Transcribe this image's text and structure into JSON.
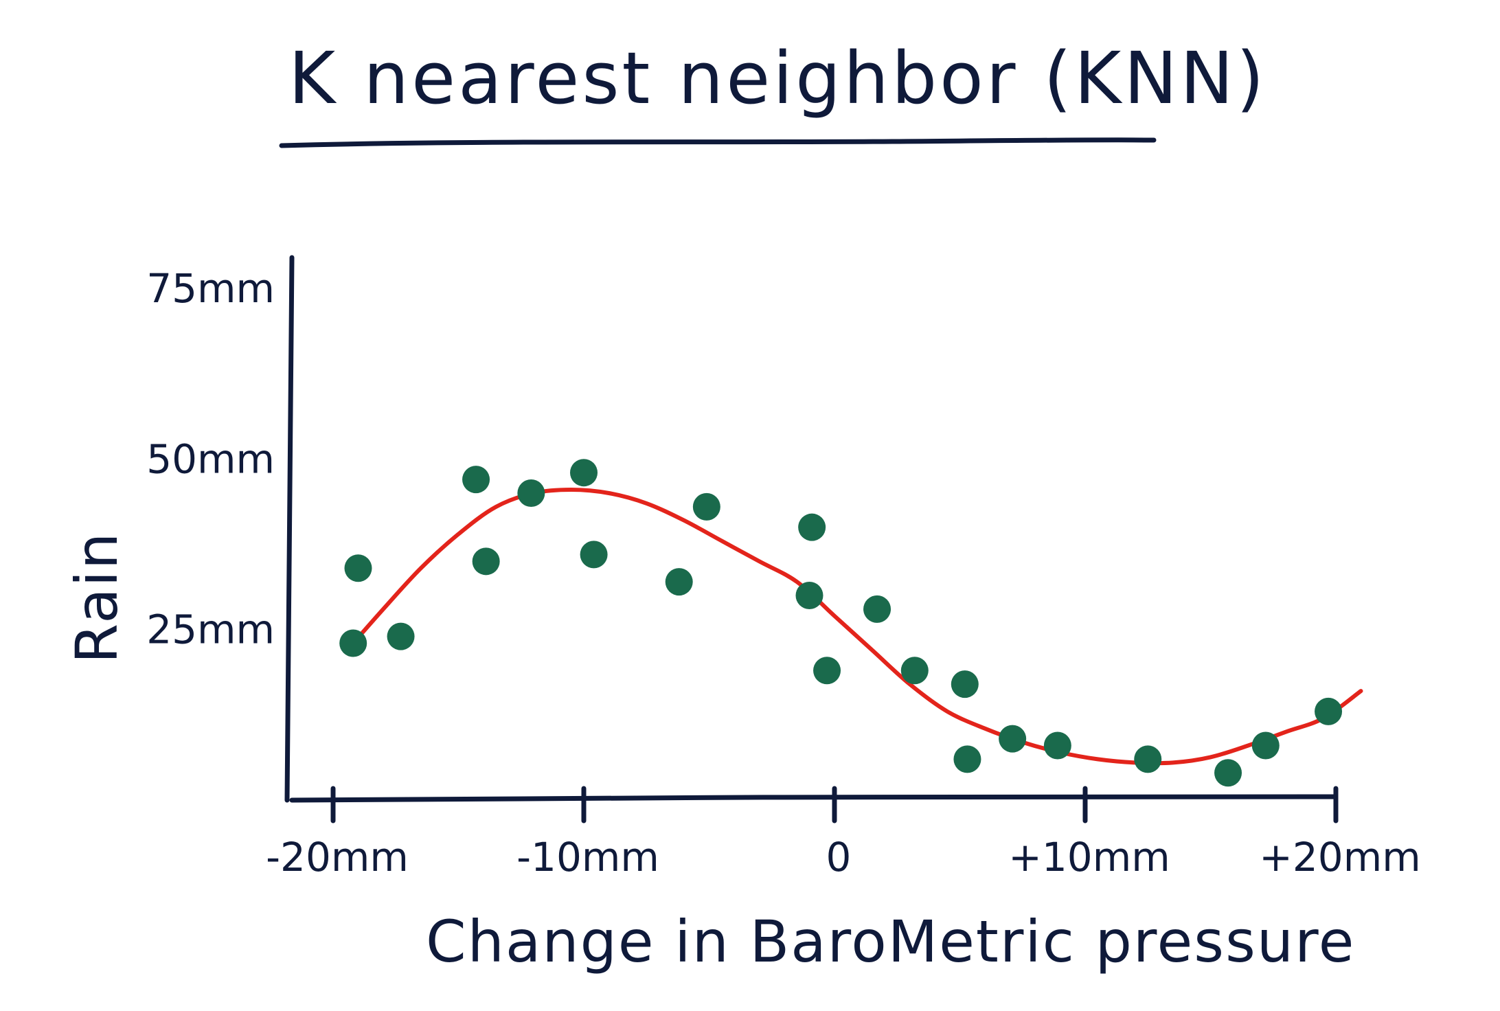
{
  "colors": {
    "ink": "#0f1a3a",
    "points": "#1a6a4c",
    "curve": "#e3241b"
  },
  "chart_data": {
    "type": "scatter",
    "title": "K nearest neighbor (KNN)",
    "xlabel": "Change in BaroMetric pressure",
    "ylabel": "Rain",
    "xlim": [
      -20,
      20
    ],
    "ylim": [
      0,
      75
    ],
    "x_ticks": [
      {
        "value": -20,
        "label": "-20mm"
      },
      {
        "value": -10,
        "label": "-10mm"
      },
      {
        "value": 0,
        "label": "0"
      },
      {
        "value": 10,
        "label": "+10mm"
      },
      {
        "value": 20,
        "label": "+20mm"
      }
    ],
    "y_ticks": [
      {
        "value": 25,
        "label": "25mm"
      },
      {
        "value": 50,
        "label": "50mm"
      },
      {
        "value": 75,
        "label": "75mm"
      }
    ],
    "grid": false,
    "legend": "none",
    "points": [
      {
        "x": -19.0,
        "y": 34
      },
      {
        "x": -19.2,
        "y": 23
      },
      {
        "x": -17.3,
        "y": 24
      },
      {
        "x": -14.3,
        "y": 47
      },
      {
        "x": -13.9,
        "y": 35
      },
      {
        "x": -12.1,
        "y": 45
      },
      {
        "x": -10.0,
        "y": 48
      },
      {
        "x": -9.6,
        "y": 36
      },
      {
        "x": -6.2,
        "y": 32
      },
      {
        "x": -5.1,
        "y": 43
      },
      {
        "x": -0.9,
        "y": 40
      },
      {
        "x": -1.0,
        "y": 30
      },
      {
        "x": -0.3,
        "y": 19
      },
      {
        "x": 1.7,
        "y": 28
      },
      {
        "x": 3.2,
        "y": 19
      },
      {
        "x": 5.2,
        "y": 17
      },
      {
        "x": 5.3,
        "y": 6
      },
      {
        "x": 7.1,
        "y": 9
      },
      {
        "x": 8.9,
        "y": 8
      },
      {
        "x": 12.5,
        "y": 6
      },
      {
        "x": 15.7,
        "y": 4
      },
      {
        "x": 17.2,
        "y": 8
      },
      {
        "x": 19.7,
        "y": 13
      }
    ],
    "fit_curve": {
      "x": [
        -19.2,
        -18.0,
        -16.5,
        -15.0,
        -13.5,
        -12.0,
        -10.5,
        -9.0,
        -7.5,
        -6.0,
        -4.5,
        -3.0,
        -1.5,
        0.0,
        1.5,
        3.0,
        4.5,
        6.0,
        7.5,
        9.0,
        10.5,
        12.0,
        13.5,
        15.0,
        16.5,
        18.0,
        19.5,
        21.0
      ],
      "y": [
        23,
        28,
        34,
        39,
        43,
        45,
        45.5,
        45,
        43.5,
        41,
        38,
        35,
        32,
        27,
        22,
        17,
        13,
        10.5,
        8.5,
        7,
        6,
        5.5,
        5.5,
        6.3,
        8,
        10,
        12,
        16
      ]
    }
  }
}
